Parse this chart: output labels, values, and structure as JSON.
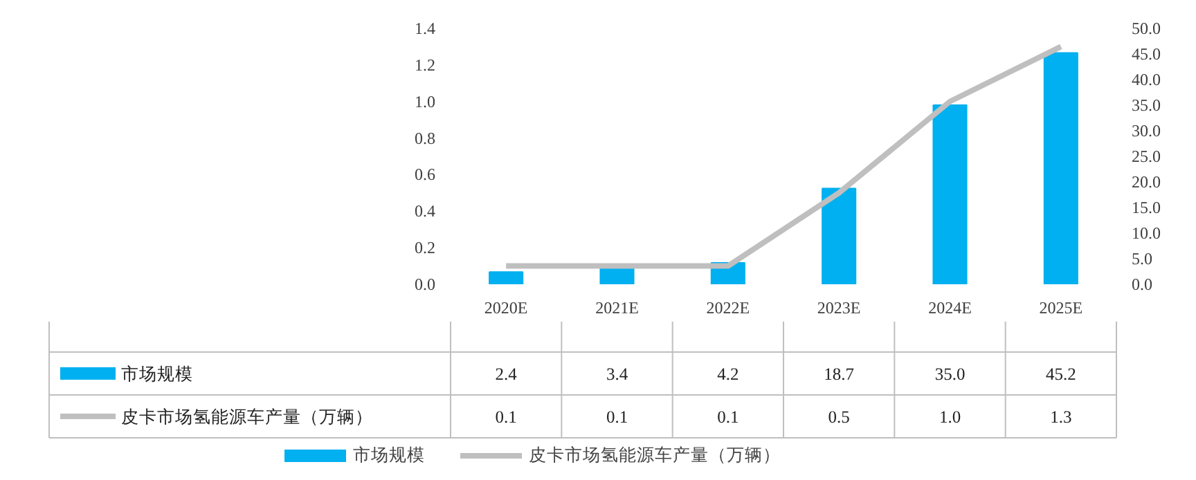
{
  "chart_data": {
    "type": "bar",
    "categories": [
      "2020E",
      "2021E",
      "2022E",
      "2023E",
      "2024E",
      "2025E"
    ],
    "series": [
      {
        "name": "市场规模",
        "axis": "y2",
        "color": "#00b0f0",
        "values": [
          2.4,
          3.4,
          4.2,
          18.7,
          35.0,
          45.2
        ],
        "value_labels": [
          "2.4",
          "3.4",
          "4.2",
          "18.7",
          "35.0",
          "45.2"
        ]
      },
      {
        "name": "皮卡市场氢能源车产量（万辆）",
        "type": "line",
        "color": "#bfbfbf",
        "values": [
          0.1,
          0.1,
          0.1,
          0.5,
          1.0,
          1.3
        ],
        "value_labels": [
          "0.1",
          "0.1",
          "0.1",
          "0.5",
          "1.0",
          "1.3"
        ]
      }
    ],
    "ylim": [
      0,
      1.4
    ],
    "yticks": [
      {
        "value": 0,
        "label": "0.0"
      },
      0.2,
      0.4,
      0.6,
      0.8,
      {
        "value": 1,
        "label": "1.0"
      },
      1.2,
      1.4
    ],
    "y2lim": [
      0,
      50
    ],
    "y2ticks": [
      {
        "value": 0,
        "label": "0.0"
      },
      {
        "value": 5,
        "label": "5.0"
      },
      {
        "value": 10,
        "label": "10.0"
      },
      {
        "value": 15,
        "label": "15.0"
      },
      {
        "value": 20,
        "label": "20.0"
      },
      {
        "value": 25,
        "label": "25.0"
      },
      {
        "value": 30,
        "label": "30.0"
      },
      {
        "value": 35,
        "label": "35.0"
      },
      {
        "value": 40,
        "label": "40.0"
      },
      {
        "value": 45,
        "label": "45.0"
      },
      {
        "value": 50,
        "label": "50.0"
      }
    ],
    "legend": "bottom",
    "grid": false,
    "marker": "none",
    "line_style": "solid"
  }
}
